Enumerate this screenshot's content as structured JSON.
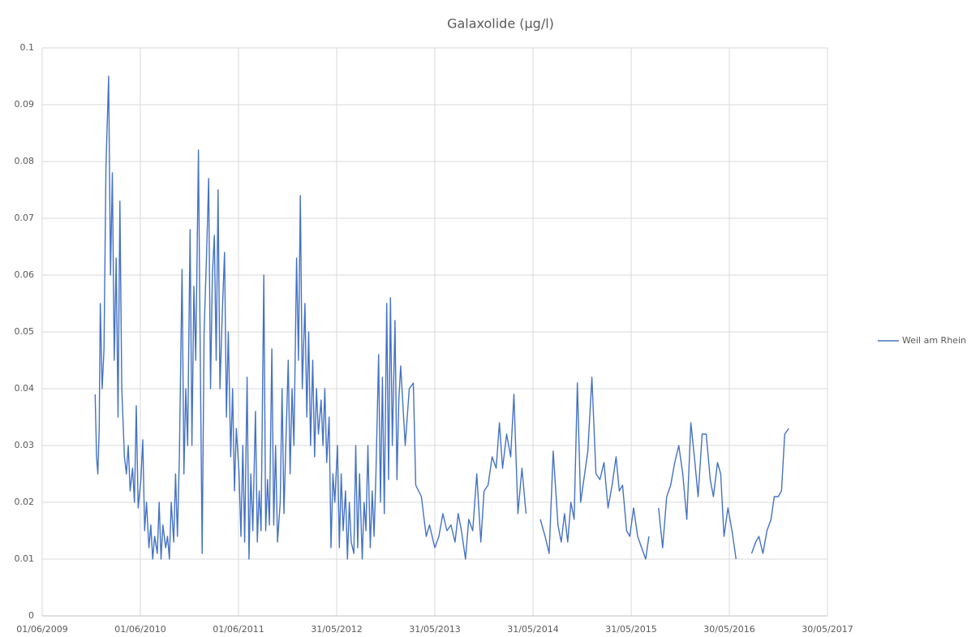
{
  "chart_data": {
    "type": "line",
    "title": "Galaxolide (µg/l)",
    "x": [
      "2009-12-15",
      "2009-12-20",
      "2009-12-25",
      "2009-12-30",
      "2010-01-03",
      "2010-01-10",
      "2010-01-17",
      "2010-01-24",
      "2010-02-03",
      "2010-02-10",
      "2010-02-17",
      "2010-02-24",
      "2010-03-03",
      "2010-03-10",
      "2010-03-17",
      "2010-03-24",
      "2010-04-03",
      "2010-04-10",
      "2010-04-17",
      "2010-04-24",
      "2010-05-03",
      "2010-05-10",
      "2010-05-17",
      "2010-05-24",
      "2010-06-03",
      "2010-06-10",
      "2010-06-17",
      "2010-06-24",
      "2010-07-03",
      "2010-07-10",
      "2010-07-17",
      "2010-07-24",
      "2010-08-03",
      "2010-08-10",
      "2010-08-17",
      "2010-08-24",
      "2010-09-03",
      "2010-09-10",
      "2010-09-17",
      "2010-09-24",
      "2010-10-03",
      "2010-10-10",
      "2010-10-17",
      "2010-10-24",
      "2010-11-03",
      "2010-11-10",
      "2010-11-17",
      "2010-11-24",
      "2010-12-03",
      "2010-12-10",
      "2010-12-17",
      "2010-12-24",
      "2011-01-03",
      "2011-01-10",
      "2011-01-17",
      "2011-01-24",
      "2011-02-03",
      "2011-02-10",
      "2011-02-17",
      "2011-02-24",
      "2011-03-03",
      "2011-03-10",
      "2011-03-17",
      "2011-03-24",
      "2011-04-03",
      "2011-04-10",
      "2011-04-17",
      "2011-04-24",
      "2011-05-03",
      "2011-05-10",
      "2011-05-17",
      "2011-05-24",
      "2011-06-03",
      "2011-06-10",
      "2011-06-17",
      "2011-06-24",
      "2011-07-03",
      "2011-07-10",
      "2011-07-17",
      "2011-07-24",
      "2011-08-03",
      "2011-08-10",
      "2011-08-17",
      "2011-08-24",
      "2011-09-03",
      "2011-09-10",
      "2011-09-17",
      "2011-09-24",
      "2011-10-03",
      "2011-10-10",
      "2011-10-17",
      "2011-10-24",
      "2011-11-03",
      "2011-11-10",
      "2011-11-17",
      "2011-11-24",
      "2011-12-03",
      "2011-12-10",
      "2011-12-17",
      "2011-12-24",
      "2012-01-03",
      "2012-01-10",
      "2012-01-17",
      "2012-01-24",
      "2012-02-03",
      "2012-02-10",
      "2012-02-17",
      "2012-02-24",
      "2012-03-03",
      "2012-03-10",
      "2012-03-17",
      "2012-03-24",
      "2012-04-03",
      "2012-04-10",
      "2012-04-17",
      "2012-04-24",
      "2012-05-03",
      "2012-05-10",
      "2012-05-17",
      "2012-05-24",
      "2012-06-03",
      "2012-06-10",
      "2012-06-17",
      "2012-06-24",
      "2012-07-03",
      "2012-07-10",
      "2012-07-17",
      "2012-07-24",
      "2012-08-03",
      "2012-08-10",
      "2012-08-17",
      "2012-08-24",
      "2012-09-03",
      "2012-09-10",
      "2012-09-17",
      "2012-09-24",
      "2012-10-03",
      "2012-10-10",
      "2012-10-17",
      "2012-10-24",
      "2012-11-03",
      "2012-11-10",
      "2012-11-17",
      "2012-11-24",
      "2012-12-03",
      "2012-12-10",
      "2012-12-17",
      "2012-12-24",
      "2013-01-03",
      "2013-01-10",
      "2013-01-17",
      "2013-01-24",
      "2013-02-10",
      "2013-02-25",
      "2013-03-12",
      "2013-03-21",
      "2013-04-11",
      "2013-04-29",
      "2013-05-11",
      "2013-05-31",
      "2013-06-15",
      "2013-06-30",
      "2013-07-15",
      "2013-07-30",
      "2013-08-14",
      "2013-08-26",
      "2013-09-07",
      "2013-09-22",
      "2013-10-04",
      "2013-10-19",
      "2013-11-03",
      "2013-11-18",
      "2013-11-30",
      "2013-12-15",
      "2013-12-30",
      "2014-01-14",
      "2014-01-26",
      "2014-02-07",
      "2014-02-22",
      "2014-03-09",
      "2014-03-21",
      "2014-04-05",
      "2014-04-20",
      "2014-05-05",
      "2014-06-10",
      "2014-06-27",
      "2014-07-15",
      "2014-07-30",
      "2014-08-14",
      "2014-09-01",
      "2014-09-13",
      "2014-09-25",
      "2014-10-07",
      "2014-10-19",
      "2014-10-31",
      "2014-11-12",
      "2014-11-24",
      "2014-12-06",
      "2014-12-21",
      "2015-01-05",
      "2015-01-20",
      "2015-02-04",
      "2015-02-19",
      "2015-03-06",
      "2015-03-21",
      "2015-04-05",
      "2015-04-17",
      "2015-04-29",
      "2015-05-14",
      "2015-05-26",
      "2015-06-09",
      "2015-06-24",
      "2015-07-09",
      "2015-07-24",
      "2015-08-05",
      "2015-08-20",
      "2015-09-10",
      "2015-09-25",
      "2015-10-10",
      "2015-10-25",
      "2015-11-09",
      "2015-11-24",
      "2015-12-09",
      "2015-12-24",
      "2016-01-08",
      "2016-01-23",
      "2016-02-04",
      "2016-02-19",
      "2016-03-05",
      "2016-03-20",
      "2016-04-01",
      "2016-04-16",
      "2016-04-28",
      "2016-05-10",
      "2016-05-25",
      "2016-06-09",
      "2016-06-24",
      "2016-07-20",
      "2016-08-21",
      "2016-09-05",
      "2016-09-17",
      "2016-10-02",
      "2016-10-17",
      "2016-11-01",
      "2016-11-13",
      "2016-11-28",
      "2016-12-10",
      "2016-12-22",
      "2017-01-06"
    ],
    "series": [
      {
        "name": "Weil am Rhein",
        "color": "#4472c4",
        "values": [
          0.039,
          0.028,
          0.025,
          0.033,
          0.055,
          0.04,
          0.047,
          0.079,
          0.095,
          0.06,
          0.078,
          0.045,
          0.063,
          0.035,
          0.073,
          0.04,
          0.028,
          0.025,
          0.03,
          0.022,
          0.026,
          0.02,
          0.037,
          0.019,
          0.024,
          0.031,
          0.015,
          0.02,
          0.012,
          0.016,
          0.01,
          0.014,
          0.011,
          0.02,
          0.01,
          0.016,
          0.012,
          0.014,
          0.01,
          0.02,
          0.013,
          0.025,
          0.014,
          0.028,
          0.061,
          0.025,
          0.04,
          0.03,
          0.068,
          0.03,
          0.058,
          0.045,
          0.082,
          0.045,
          0.011,
          0.05,
          0.065,
          0.077,
          0.04,
          0.06,
          0.067,
          0.045,
          0.075,
          0.04,
          0.055,
          0.064,
          0.035,
          0.05,
          0.028,
          0.04,
          0.022,
          0.033,
          0.025,
          0.014,
          0.03,
          0.013,
          0.042,
          0.01,
          0.025,
          0.015,
          0.036,
          0.013,
          0.022,
          0.015,
          0.06,
          0.015,
          0.024,
          0.016,
          0.047,
          0.016,
          0.03,
          0.013,
          0.02,
          0.04,
          0.018,
          0.03,
          0.045,
          0.025,
          0.04,
          0.03,
          0.063,
          0.045,
          0.074,
          0.04,
          0.055,
          0.035,
          0.05,
          0.03,
          0.045,
          0.028,
          0.04,
          0.032,
          0.038,
          0.03,
          0.04,
          0.027,
          0.035,
          0.012,
          0.025,
          0.02,
          0.03,
          0.012,
          0.025,
          0.015,
          0.022,
          0.01,
          0.02,
          0.013,
          0.011,
          0.03,
          0.012,
          0.025,
          0.01,
          0.02,
          0.015,
          0.03,
          0.012,
          0.022,
          0.014,
          0.025,
          0.046,
          0.02,
          0.042,
          0.018,
          0.055,
          0.024,
          0.056,
          0.03,
          0.052,
          0.024,
          0.038,
          0.044,
          0.03,
          0.04,
          0.041,
          0.023,
          0.021,
          0.014,
          0.016,
          0.012,
          0.014,
          0.018,
          0.015,
          0.016,
          0.013,
          0.018,
          0.015,
          0.01,
          0.017,
          0.015,
          0.025,
          0.013,
          0.022,
          0.023,
          0.028,
          0.026,
          0.034,
          0.026,
          0.032,
          0.028,
          0.039,
          0.018,
          0.026,
          0.018,
          null,
          0.017,
          0.014,
          0.011,
          0.029,
          0.016,
          0.013,
          0.018,
          0.013,
          0.02,
          0.017,
          0.041,
          0.02,
          0.024,
          0.029,
          0.042,
          0.025,
          0.024,
          0.027,
          0.019,
          0.023,
          0.028,
          0.022,
          0.023,
          0.015,
          0.014,
          0.019,
          0.014,
          0.012,
          0.01,
          0.014,
          null,
          0.019,
          0.012,
          0.021,
          0.023,
          0.027,
          0.03,
          0.025,
          0.017,
          0.034,
          0.027,
          0.021,
          0.032,
          0.032,
          0.024,
          0.021,
          0.027,
          0.025,
          0.014,
          0.019,
          0.015,
          0.01,
          null,
          0.011,
          0.013,
          0.014,
          0.011,
          0.015,
          0.017,
          0.021,
          0.021,
          0.022,
          0.032,
          0.033
        ]
      }
    ],
    "xlim": [
      "2009-06-01",
      "2017-05-30"
    ],
    "xticks": [
      {
        "value": "2009-06-01",
        "label": "01/06/2009"
      },
      {
        "value": "2010-06-01",
        "label": "01/06/2010"
      },
      {
        "value": "2011-06-01",
        "label": "01/06/2011"
      },
      {
        "value": "2012-05-31",
        "label": "31/05/2012"
      },
      {
        "value": "2013-05-31",
        "label": "31/05/2013"
      },
      {
        "value": "2014-05-31",
        "label": "31/05/2014"
      },
      {
        "value": "2015-05-31",
        "label": "31/05/2015"
      },
      {
        "value": "2016-05-30",
        "label": "30/05/2016"
      },
      {
        "value": "2017-05-30",
        "label": "30/05/2017"
      }
    ],
    "ylim": [
      0,
      0.1
    ],
    "yticks": [
      0,
      0.01,
      0.02,
      0.03,
      0.04,
      0.05,
      0.06,
      0.07,
      0.08,
      0.09,
      0.1
    ],
    "grid": true,
    "legend": "right"
  }
}
